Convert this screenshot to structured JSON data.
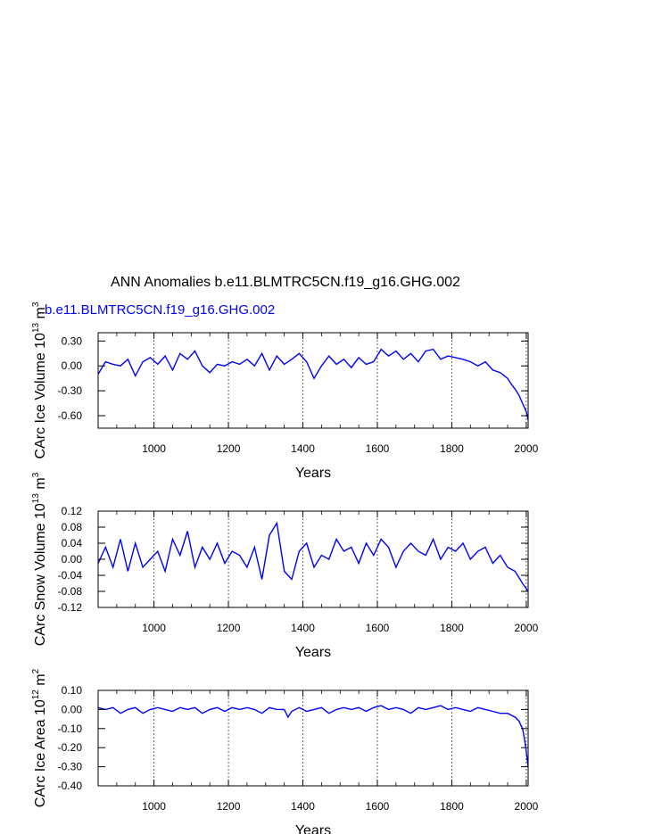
{
  "title": "ANN Anomalies b.e11.BLMTRC5CN.f19_g16.GHG.002",
  "series_label": "b.e11.BLMTRC5CN.f19_g16.GHG.002",
  "colors": {
    "series": "#0000ff",
    "axis": "#000000",
    "grid": "#000000"
  },
  "chart_data": [
    {
      "type": "line",
      "title": "ANN Anomalies b.e11.BLMTRC5CN.f19_g16.GHG.002",
      "legend_text": "b.e11.BLMTRC5CN.f19_g16.GHG.002",
      "xlabel": "Years",
      "ylabel": "CArc Ice Volume 10",
      "ylabel_exp": "13",
      "ylabel_unit": " m",
      "ylabel_unit_exp": "3",
      "xlim": [
        850,
        2005
      ],
      "ylim": [
        -0.75,
        0.4
      ],
      "xticks": [
        1000,
        1200,
        1400,
        1600,
        1800,
        2000
      ],
      "xtick_labels": [
        "1000",
        "1200",
        "1400",
        "1600",
        "1800",
        "2000"
      ],
      "yticks": [
        0.3,
        0.0,
        -0.3,
        -0.6
      ],
      "ytick_labels": [
        "0.30",
        "0.00",
        "-0.30",
        "-0.60"
      ],
      "grid_x": true,
      "series": [
        {
          "x": [
            850,
            870,
            890,
            910,
            930,
            950,
            970,
            990,
            1010,
            1030,
            1050,
            1070,
            1090,
            1110,
            1130,
            1150,
            1170,
            1190,
            1210,
            1230,
            1250,
            1270,
            1290,
            1310,
            1330,
            1350,
            1370,
            1390,
            1410,
            1430,
            1450,
            1470,
            1490,
            1510,
            1530,
            1550,
            1570,
            1590,
            1610,
            1630,
            1650,
            1670,
            1690,
            1710,
            1730,
            1750,
            1770,
            1790,
            1810,
            1830,
            1850,
            1870,
            1890,
            1910,
            1930,
            1950,
            1960,
            1970,
            1980,
            1990,
            2000,
            2005
          ],
          "y": [
            -0.1,
            0.05,
            0.02,
            0.0,
            0.08,
            -0.12,
            0.05,
            0.1,
            0.02,
            0.12,
            -0.05,
            0.15,
            0.08,
            0.18,
            0.0,
            -0.08,
            0.02,
            0.0,
            0.05,
            0.02,
            0.08,
            0.0,
            0.15,
            -0.05,
            0.12,
            0.02,
            0.08,
            0.15,
            0.05,
            -0.15,
            0.0,
            0.12,
            0.02,
            0.08,
            -0.02,
            0.1,
            0.02,
            0.05,
            0.2,
            0.12,
            0.18,
            0.08,
            0.15,
            0.05,
            0.18,
            0.2,
            0.08,
            0.12,
            0.1,
            0.08,
            0.05,
            0.0,
            0.05,
            -0.05,
            -0.08,
            -0.15,
            -0.22,
            -0.28,
            -0.35,
            -0.45,
            -0.55,
            -0.65
          ]
        }
      ]
    },
    {
      "type": "line",
      "xlabel": "Years",
      "ylabel": "CArc Snow Volume 10",
      "ylabel_exp": "13",
      "ylabel_unit": " m",
      "ylabel_unit_exp": "3",
      "xlim": [
        850,
        2005
      ],
      "ylim": [
        -0.12,
        0.12
      ],
      "xticks": [
        1000,
        1200,
        1400,
        1600,
        1800,
        2000
      ],
      "xtick_labels": [
        "1000",
        "1200",
        "1400",
        "1600",
        "1800",
        "2000"
      ],
      "yticks": [
        0.12,
        0.08,
        0.04,
        0.0,
        -0.04,
        -0.08,
        -0.12
      ],
      "ytick_labels": [
        "0.12",
        "0.08",
        "0.04",
        "0.00",
        "-0.04",
        "-0.08",
        "-0.12"
      ],
      "grid_x": true,
      "series": [
        {
          "x": [
            850,
            870,
            890,
            910,
            930,
            950,
            970,
            990,
            1010,
            1030,
            1050,
            1070,
            1090,
            1110,
            1130,
            1150,
            1170,
            1190,
            1210,
            1230,
            1250,
            1270,
            1290,
            1310,
            1330,
            1350,
            1370,
            1390,
            1410,
            1430,
            1450,
            1470,
            1490,
            1510,
            1530,
            1550,
            1570,
            1590,
            1610,
            1630,
            1650,
            1670,
            1690,
            1710,
            1730,
            1750,
            1770,
            1790,
            1810,
            1830,
            1850,
            1870,
            1890,
            1910,
            1930,
            1950,
            1970,
            1990,
            2005
          ],
          "y": [
            -0.01,
            0.03,
            -0.02,
            0.05,
            -0.03,
            0.04,
            -0.02,
            0.0,
            0.02,
            -0.03,
            0.05,
            0.01,
            0.07,
            -0.02,
            0.03,
            0.0,
            0.04,
            -0.01,
            0.02,
            0.01,
            -0.02,
            0.03,
            -0.05,
            0.06,
            0.09,
            -0.03,
            -0.05,
            0.02,
            0.04,
            -0.02,
            0.01,
            0.0,
            0.05,
            0.02,
            0.03,
            -0.01,
            0.04,
            0.01,
            0.05,
            0.03,
            -0.02,
            0.02,
            0.04,
            0.02,
            0.01,
            0.05,
            0.0,
            0.03,
            0.02,
            0.04,
            0.0,
            0.02,
            0.03,
            -0.01,
            0.01,
            -0.02,
            -0.03,
            -0.06,
            -0.08
          ]
        }
      ]
    },
    {
      "type": "line",
      "xlabel": "Years",
      "ylabel": "CArc Ice Area 10",
      "ylabel_exp": "12",
      "ylabel_unit": " m",
      "ylabel_unit_exp": "2",
      "xlim": [
        850,
        2005
      ],
      "ylim": [
        -0.4,
        0.1
      ],
      "xticks": [
        1000,
        1200,
        1400,
        1600,
        1800,
        2000
      ],
      "xtick_labels": [
        "1000",
        "1200",
        "1400",
        "1600",
        "1800",
        "2000"
      ],
      "yticks": [
        0.1,
        0.0,
        -0.1,
        -0.2,
        -0.3,
        -0.4
      ],
      "ytick_labels": [
        "0.10",
        "0.00",
        "-0.10",
        "-0.20",
        "-0.30",
        "-0.40"
      ],
      "grid_x": true,
      "series": [
        {
          "x": [
            850,
            870,
            890,
            910,
            930,
            950,
            970,
            990,
            1010,
            1030,
            1050,
            1070,
            1090,
            1110,
            1130,
            1150,
            1170,
            1190,
            1210,
            1230,
            1250,
            1270,
            1290,
            1310,
            1330,
            1350,
            1360,
            1370,
            1390,
            1410,
            1430,
            1450,
            1470,
            1490,
            1510,
            1530,
            1550,
            1570,
            1590,
            1610,
            1630,
            1650,
            1670,
            1690,
            1710,
            1730,
            1750,
            1770,
            1790,
            1810,
            1830,
            1850,
            1870,
            1890,
            1910,
            1930,
            1950,
            1970,
            1980,
            1990,
            1995,
            2000,
            2005
          ],
          "y": [
            0.01,
            0.0,
            0.01,
            -0.02,
            0.0,
            0.01,
            -0.02,
            0.0,
            0.01,
            0.0,
            -0.01,
            0.01,
            0.0,
            0.01,
            -0.02,
            0.0,
            0.01,
            -0.01,
            0.01,
            0.0,
            0.01,
            0.0,
            -0.02,
            0.01,
            0.0,
            0.0,
            -0.04,
            -0.01,
            0.01,
            -0.01,
            0.0,
            0.01,
            -0.02,
            0.0,
            0.01,
            0.0,
            0.01,
            -0.01,
            0.01,
            0.02,
            0.0,
            0.01,
            0.0,
            -0.02,
            0.01,
            0.0,
            0.01,
            0.02,
            0.0,
            0.01,
            0.0,
            -0.01,
            0.01,
            0.0,
            -0.01,
            -0.02,
            -0.02,
            -0.04,
            -0.06,
            -0.1,
            -0.15,
            -0.22,
            -0.3
          ]
        }
      ]
    }
  ]
}
